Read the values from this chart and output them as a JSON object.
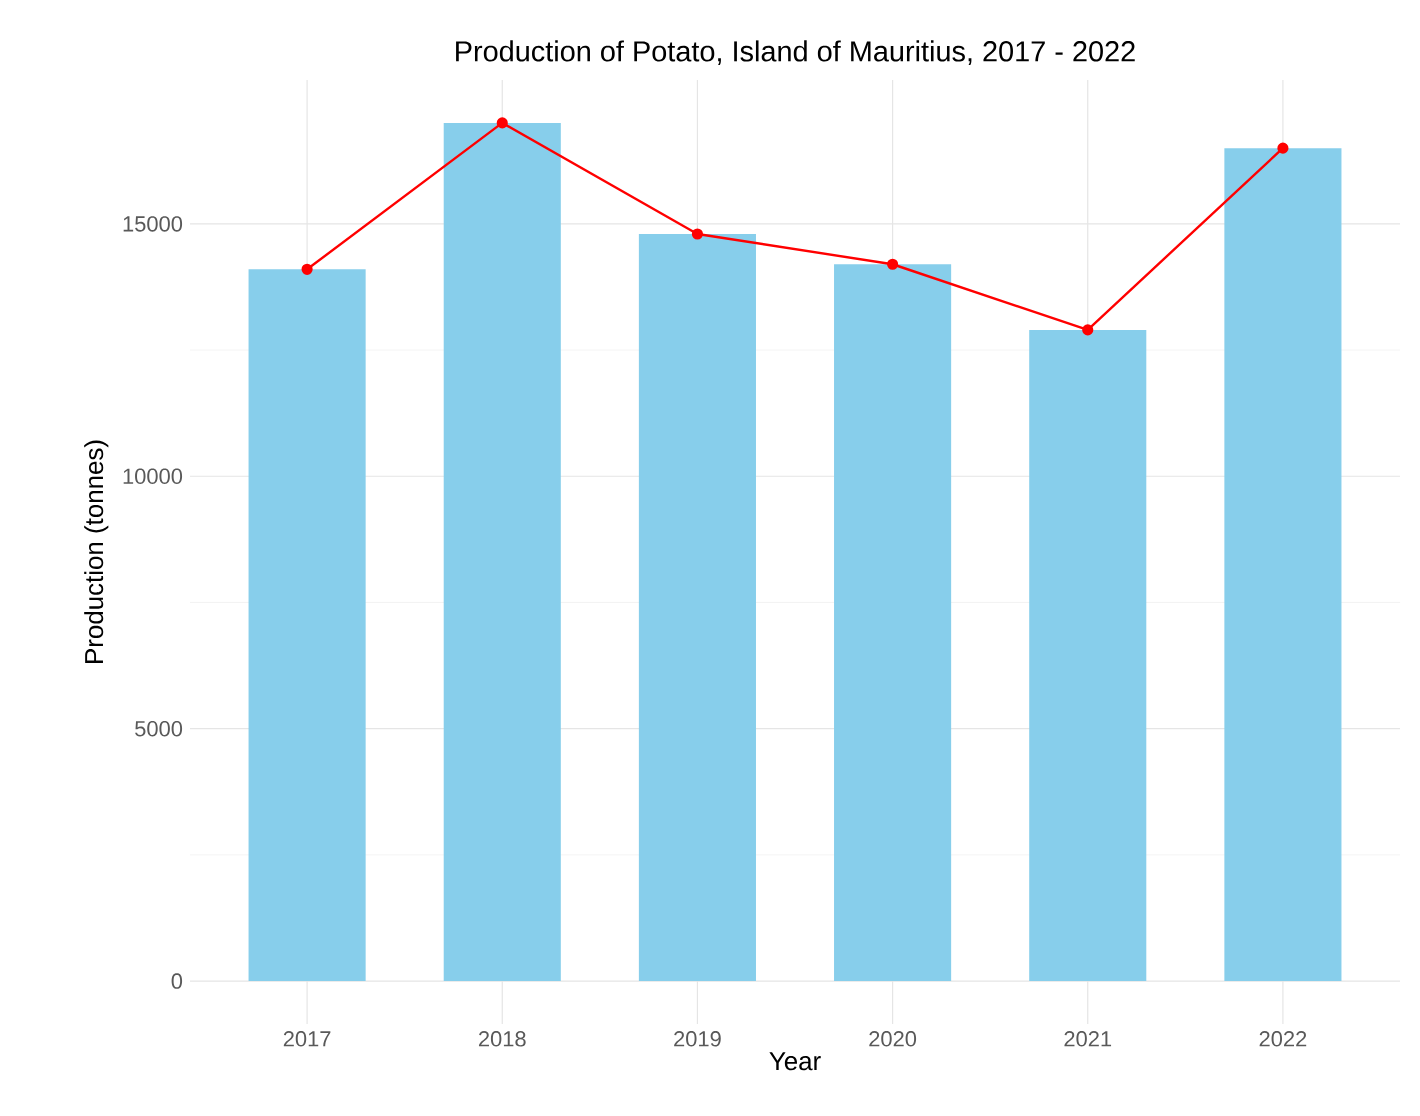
{
  "chart_data": {
    "type": "bar",
    "title": "Production of Potato, Island of Mauritius, 2017 - 2022",
    "xlabel": "Year",
    "ylabel": "Production (tonnes)",
    "categories": [
      "2017",
      "2018",
      "2019",
      "2020",
      "2021",
      "2022"
    ],
    "series": [
      {
        "color": "#87ceeb",
        "values": [
          14100,
          17000,
          14800,
          14200,
          12900,
          16500
        ]
      },
      {
        "type": "line",
        "color": "#ff0000",
        "marker": "circle",
        "values": [
          14100,
          17000,
          14800,
          14200,
          12900,
          16500
        ]
      }
    ],
    "ylim": [
      -850,
      17850
    ],
    "yticks": [
      0,
      5000,
      10000,
      15000
    ],
    "grid": true
  }
}
